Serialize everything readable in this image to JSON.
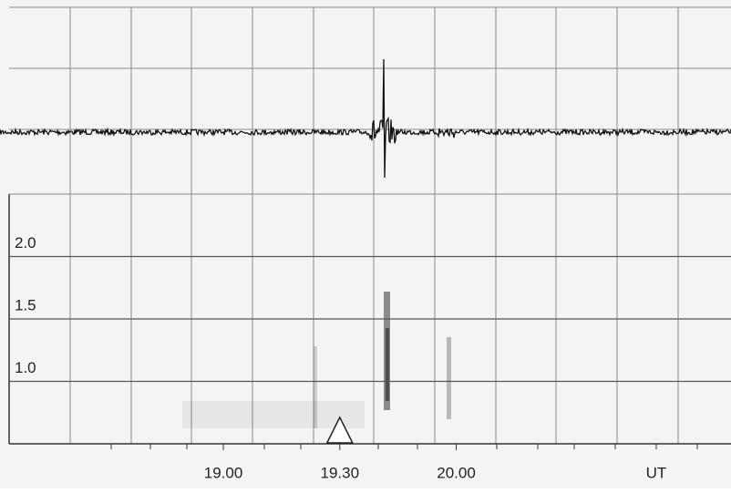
{
  "chart_data": {
    "type": "spectrogram",
    "x_label": "UT",
    "xlim": [
      18.08,
      21.18
    ],
    "xticks": [
      {
        "value": 19.0,
        "label": "19.00"
      },
      {
        "value": 19.5,
        "label": "19.30"
      },
      {
        "value": 20.0,
        "label": "20.00"
      }
    ],
    "ylim": [
      0.5,
      2.5
    ],
    "yticks": [
      {
        "value": 1.0,
        "label": "1.0"
      },
      {
        "value": 1.5,
        "label": "1.5"
      },
      {
        "value": 2.0,
        "label": "2.0"
      }
    ],
    "marker_x": 19.5,
    "grid": true
  }
}
